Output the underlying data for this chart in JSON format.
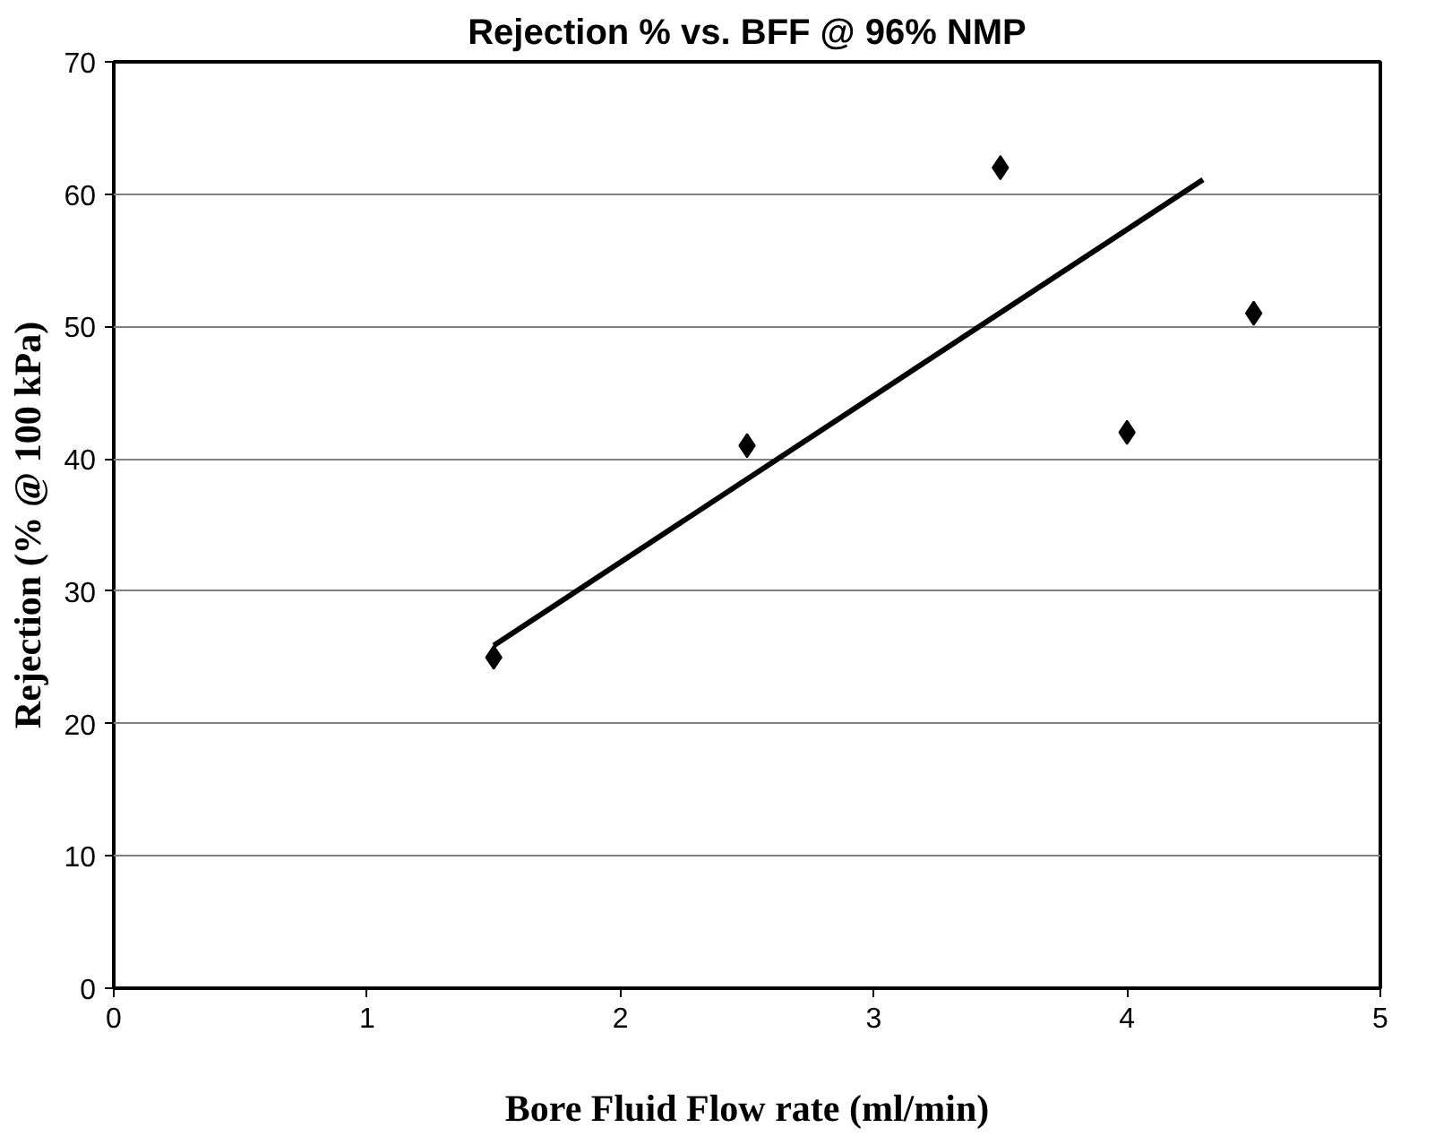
{
  "chart_data": {
    "type": "scatter",
    "title": "Rejection % vs. BFF @ 96% NMP",
    "xlabel": "Bore Fluid Flow rate (ml/min)",
    "ylabel": "Rejection (% @ 100 kPa)",
    "x": [
      1.5,
      2.5,
      3.5,
      4,
      4.5
    ],
    "marker": "diamond",
    "grid": "y",
    "series": [
      {
        "color": "#000000",
        "values": [
          25,
          41,
          62,
          42,
          51
        ]
      },
      {
        "type": "line",
        "marker": "none",
        "color": "#000000",
        "x": [
          1.5,
          4.3
        ],
        "values": [
          25.9,
          61.1
        ]
      }
    ],
    "xlim": [
      0,
      5
    ],
    "ylim": [
      0,
      70
    ],
    "xticks": [
      0,
      1,
      2,
      3,
      4,
      5
    ],
    "yticks": [
      0,
      10,
      20,
      30,
      40,
      50,
      60,
      70
    ]
  }
}
